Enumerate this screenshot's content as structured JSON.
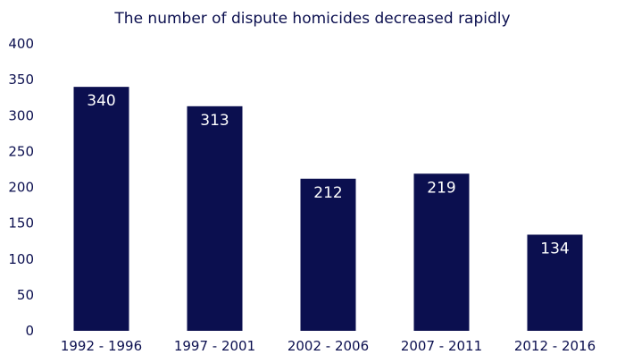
{
  "colors": {
    "bar": "#0b0f4f",
    "text": "#0b0f4f",
    "data_label": "#ffffff",
    "background": "#ffffff"
  },
  "chart_data": {
    "type": "bar",
    "title": "The number of dispute homicides decreased rapidly",
    "xlabel": "",
    "ylabel": "",
    "categories": [
      "1992 - 1996",
      "1997 - 2001",
      "2002 - 2006",
      "2007 - 2011",
      "2012 - 2016"
    ],
    "values": [
      340,
      313,
      212,
      219,
      134
    ],
    "data_labels": [
      "340",
      "313",
      "212",
      "219",
      "134"
    ],
    "ylim": [
      0,
      400
    ],
    "yticks": [
      "0",
      "50",
      "100",
      "150",
      "200",
      "250",
      "300",
      "350",
      "400"
    ],
    "grid": false,
    "legend": "none"
  }
}
